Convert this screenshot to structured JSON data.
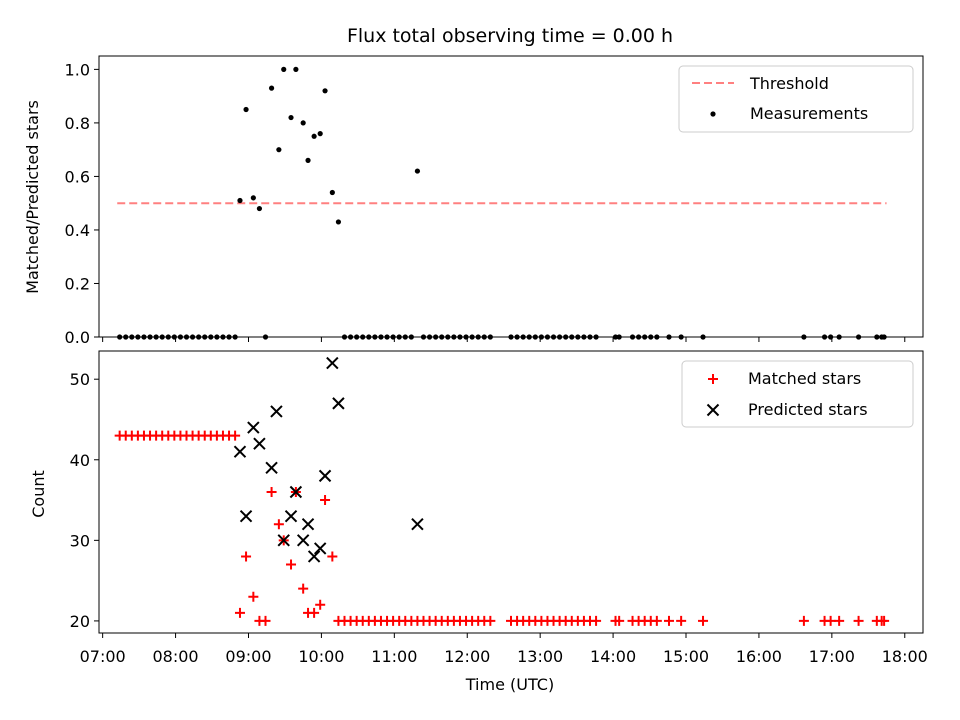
{
  "chart_data": [
    {
      "type": "scatter",
      "title": "Flux total observing time = 0.00 h",
      "ylabel": "Matched/Predicted stars",
      "ylim": [
        0,
        1.05
      ],
      "yticks": [
        0.0,
        0.2,
        0.4,
        0.6,
        0.8,
        1.0
      ],
      "yticklabels": [
        "0.0",
        "0.2",
        "0.4",
        "0.6",
        "0.8",
        "1.0"
      ],
      "xlim_hours": [
        6.95,
        18.25
      ],
      "legend_position": "top-right",
      "threshold": {
        "name": "Threshold",
        "value": 0.5,
        "x_range": [
          "07:12",
          "17:45"
        ],
        "color": "#ff8080"
      },
      "series": [
        {
          "name": "Measurements",
          "color": "#000000",
          "marker": "dot",
          "points": [
            [
              "07:14",
              0
            ],
            [
              "07:19",
              0
            ],
            [
              "07:24",
              0
            ],
            [
              "07:29",
              0
            ],
            [
              "07:34",
              0
            ],
            [
              "07:39",
              0
            ],
            [
              "07:44",
              0
            ],
            [
              "07:49",
              0
            ],
            [
              "07:54",
              0
            ],
            [
              "07:59",
              0
            ],
            [
              "08:04",
              0
            ],
            [
              "08:09",
              0
            ],
            [
              "08:14",
              0
            ],
            [
              "08:19",
              0
            ],
            [
              "08:24",
              0
            ],
            [
              "08:29",
              0
            ],
            [
              "08:34",
              0
            ],
            [
              "08:39",
              0
            ],
            [
              "08:44",
              0
            ],
            [
              "08:49",
              0
            ],
            [
              "08:53",
              0.51
            ],
            [
              "08:58",
              0.85
            ],
            [
              "09:04",
              0.52
            ],
            [
              "09:09",
              0.48
            ],
            [
              "09:14",
              0
            ],
            [
              "09:19",
              0.93
            ],
            [
              "09:25",
              0.7
            ],
            [
              "09:29",
              1.0
            ],
            [
              "09:35",
              0.82
            ],
            [
              "09:39",
              1.0
            ],
            [
              "09:45",
              0.8
            ],
            [
              "09:49",
              0.66
            ],
            [
              "09:54",
              0.75
            ],
            [
              "09:59",
              0.76
            ],
            [
              "10:03",
              0.92
            ],
            [
              "10:09",
              0.54
            ],
            [
              "10:14",
              0.43
            ],
            [
              "10:19",
              0
            ],
            [
              "10:24",
              0
            ],
            [
              "10:29",
              0
            ],
            [
              "10:34",
              0
            ],
            [
              "10:39",
              0
            ],
            [
              "10:44",
              0
            ],
            [
              "10:49",
              0
            ],
            [
              "10:54",
              0
            ],
            [
              "10:59",
              0
            ],
            [
              "11:04",
              0
            ],
            [
              "11:09",
              0
            ],
            [
              "11:14",
              0
            ],
            [
              "11:19",
              0.62
            ],
            [
              "11:24",
              0
            ],
            [
              "11:29",
              0
            ],
            [
              "11:34",
              0
            ],
            [
              "11:39",
              0
            ],
            [
              "11:44",
              0
            ],
            [
              "11:49",
              0
            ],
            [
              "11:54",
              0
            ],
            [
              "11:59",
              0
            ],
            [
              "12:04",
              0
            ],
            [
              "12:09",
              0
            ],
            [
              "12:14",
              0
            ],
            [
              "12:19",
              0
            ],
            [
              "12:36",
              0
            ],
            [
              "12:41",
              0
            ],
            [
              "12:46",
              0
            ],
            [
              "12:51",
              0
            ],
            [
              "12:56",
              0
            ],
            [
              "13:01",
              0
            ],
            [
              "13:06",
              0
            ],
            [
              "13:11",
              0
            ],
            [
              "13:16",
              0
            ],
            [
              "13:21",
              0
            ],
            [
              "13:26",
              0
            ],
            [
              "13:31",
              0
            ],
            [
              "13:36",
              0
            ],
            [
              "13:41",
              0
            ],
            [
              "13:46",
              0
            ],
            [
              "14:02",
              0
            ],
            [
              "14:05",
              0
            ],
            [
              "14:16",
              0
            ],
            [
              "14:21",
              0
            ],
            [
              "14:26",
              0
            ],
            [
              "14:31",
              0
            ],
            [
              "14:36",
              0
            ],
            [
              "14:46",
              0
            ],
            [
              "14:56",
              0
            ],
            [
              "15:14",
              0
            ],
            [
              "16:37",
              0
            ],
            [
              "16:54",
              0
            ],
            [
              "16:59",
              0
            ],
            [
              "17:06",
              0
            ],
            [
              "17:22",
              0
            ],
            [
              "17:37",
              0
            ],
            [
              "17:41",
              0
            ],
            [
              "17:43",
              0
            ]
          ]
        }
      ]
    },
    {
      "type": "scatter",
      "xlabel": "Time (UTC)",
      "ylabel": "Count",
      "ylim": [
        18.5,
        53.5
      ],
      "yticks": [
        20,
        30,
        40,
        50
      ],
      "yticklabels": [
        "20",
        "30",
        "40",
        "50"
      ],
      "xlim_hours": [
        6.95,
        18.25
      ],
      "xticks": [
        "07:00",
        "08:00",
        "09:00",
        "10:00",
        "11:00",
        "12:00",
        "13:00",
        "14:00",
        "15:00",
        "16:00",
        "17:00",
        "18:00"
      ],
      "legend_position": "top-right",
      "series": [
        {
          "name": "Matched stars",
          "color": "#ff0000",
          "marker": "plus",
          "points": [
            [
              "07:14",
              43
            ],
            [
              "07:19",
              43
            ],
            [
              "07:24",
              43
            ],
            [
              "07:29",
              43
            ],
            [
              "07:34",
              43
            ],
            [
              "07:39",
              43
            ],
            [
              "07:44",
              43
            ],
            [
              "07:49",
              43
            ],
            [
              "07:54",
              43
            ],
            [
              "07:59",
              43
            ],
            [
              "08:04",
              43
            ],
            [
              "08:09",
              43
            ],
            [
              "08:14",
              43
            ],
            [
              "08:19",
              43
            ],
            [
              "08:24",
              43
            ],
            [
              "08:29",
              43
            ],
            [
              "08:34",
              43
            ],
            [
              "08:39",
              43
            ],
            [
              "08:44",
              43
            ],
            [
              "08:49",
              43
            ],
            [
              "08:53",
              21
            ],
            [
              "08:58",
              28
            ],
            [
              "09:04",
              23
            ],
            [
              "09:09",
              20
            ],
            [
              "09:14",
              20
            ],
            [
              "09:19",
              36
            ],
            [
              "09:25",
              32
            ],
            [
              "09:29",
              30
            ],
            [
              "09:35",
              27
            ],
            [
              "09:39",
              36
            ],
            [
              "09:45",
              24
            ],
            [
              "09:49",
              21
            ],
            [
              "09:54",
              21
            ],
            [
              "09:59",
              22
            ],
            [
              "10:03",
              35
            ],
            [
              "10:09",
              28
            ],
            [
              "10:14",
              20
            ],
            [
              "10:19",
              20
            ],
            [
              "10:24",
              20
            ],
            [
              "10:29",
              20
            ],
            [
              "10:34",
              20
            ],
            [
              "10:39",
              20
            ],
            [
              "10:44",
              20
            ],
            [
              "10:49",
              20
            ],
            [
              "10:54",
              20
            ],
            [
              "10:59",
              20
            ],
            [
              "11:04",
              20
            ],
            [
              "11:09",
              20
            ],
            [
              "11:14",
              20
            ],
            [
              "11:19",
              20
            ],
            [
              "11:24",
              20
            ],
            [
              "11:29",
              20
            ],
            [
              "11:34",
              20
            ],
            [
              "11:39",
              20
            ],
            [
              "11:44",
              20
            ],
            [
              "11:49",
              20
            ],
            [
              "11:54",
              20
            ],
            [
              "11:59",
              20
            ],
            [
              "12:04",
              20
            ],
            [
              "12:09",
              20
            ],
            [
              "12:14",
              20
            ],
            [
              "12:19",
              20
            ],
            [
              "12:36",
              20
            ],
            [
              "12:41",
              20
            ],
            [
              "12:46",
              20
            ],
            [
              "12:51",
              20
            ],
            [
              "12:56",
              20
            ],
            [
              "13:01",
              20
            ],
            [
              "13:06",
              20
            ],
            [
              "13:11",
              20
            ],
            [
              "13:16",
              20
            ],
            [
              "13:21",
              20
            ],
            [
              "13:26",
              20
            ],
            [
              "13:31",
              20
            ],
            [
              "13:36",
              20
            ],
            [
              "13:41",
              20
            ],
            [
              "13:46",
              20
            ],
            [
              "14:02",
              20
            ],
            [
              "14:05",
              20
            ],
            [
              "14:16",
              20
            ],
            [
              "14:21",
              20
            ],
            [
              "14:26",
              20
            ],
            [
              "14:31",
              20
            ],
            [
              "14:36",
              20
            ],
            [
              "14:46",
              20
            ],
            [
              "14:56",
              20
            ],
            [
              "15:14",
              20
            ],
            [
              "16:37",
              20
            ],
            [
              "16:54",
              20
            ],
            [
              "16:59",
              20
            ],
            [
              "17:06",
              20
            ],
            [
              "17:22",
              20
            ],
            [
              "17:37",
              20
            ],
            [
              "17:41",
              20
            ],
            [
              "17:43",
              20
            ]
          ]
        },
        {
          "name": "Predicted stars",
          "color": "#000000",
          "marker": "x",
          "points": [
            [
              "08:53",
              41
            ],
            [
              "08:58",
              33
            ],
            [
              "09:04",
              44
            ],
            [
              "09:09",
              42
            ],
            [
              "09:19",
              39
            ],
            [
              "09:23",
              46
            ],
            [
              "09:29",
              30
            ],
            [
              "09:35",
              33
            ],
            [
              "09:39",
              36
            ],
            [
              "09:45",
              30
            ],
            [
              "09:49",
              32
            ],
            [
              "09:54",
              28
            ],
            [
              "09:59",
              29
            ],
            [
              "10:03",
              38
            ],
            [
              "10:09",
              52
            ],
            [
              "10:14",
              47
            ],
            [
              "11:19",
              32
            ]
          ]
        }
      ]
    }
  ]
}
